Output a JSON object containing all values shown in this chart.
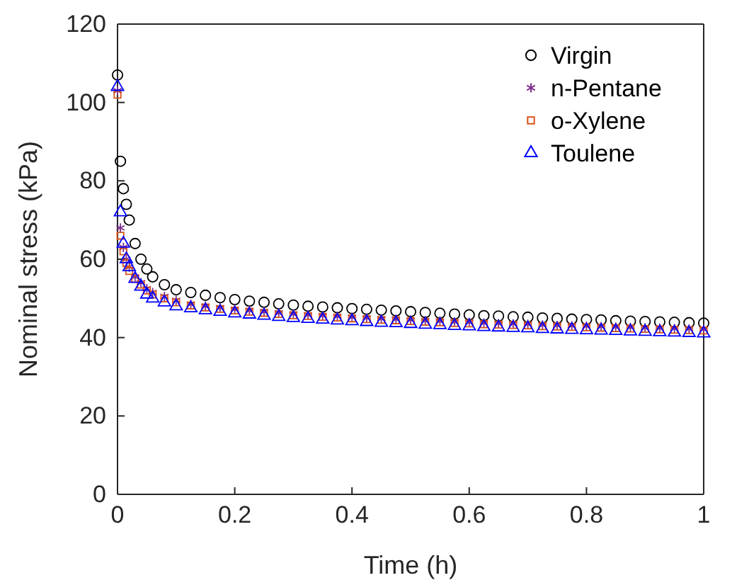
{
  "chart_data": {
    "type": "scatter",
    "xlabel": "Time (h)",
    "ylabel": "Nominal stress (kPa)",
    "xlim": [
      0,
      1
    ],
    "ylim": [
      0,
      120
    ],
    "xticks": [
      0,
      0.2,
      0.4,
      0.6,
      0.8,
      1
    ],
    "yticks": [
      0,
      20,
      40,
      60,
      80,
      100,
      120
    ],
    "legend": "top right",
    "grid": false,
    "x": [
      0,
      0.005,
      0.01,
      0.015,
      0.02,
      0.03,
      0.04,
      0.05,
      0.06,
      0.08,
      0.1,
      0.125,
      0.15,
      0.175,
      0.2,
      0.225,
      0.25,
      0.275,
      0.3,
      0.325,
      0.35,
      0.375,
      0.4,
      0.425,
      0.45,
      0.475,
      0.5,
      0.525,
      0.55,
      0.575,
      0.6,
      0.625,
      0.65,
      0.675,
      0.7,
      0.725,
      0.75,
      0.775,
      0.8,
      0.825,
      0.85,
      0.875,
      0.9,
      0.925,
      0.95,
      0.975,
      1
    ],
    "series": [
      {
        "name": "Virgin",
        "color": "#000000",
        "marker": "circle",
        "values": [
          107,
          85,
          78,
          74,
          70,
          64,
          60,
          57.5,
          55.5,
          53.5,
          52.2,
          51.5,
          50.8,
          50.2,
          49.7,
          49.3,
          49,
          48.6,
          48.3,
          48,
          47.8,
          47.6,
          47.4,
          47.2,
          47,
          46.8,
          46.6,
          46.4,
          46.2,
          46,
          45.8,
          45.6,
          45.5,
          45.3,
          45.2,
          45,
          44.9,
          44.7,
          44.6,
          44.5,
          44.3,
          44.2,
          44.1,
          44,
          43.9,
          43.8,
          43.7
        ]
      },
      {
        "name": "n-Pentane",
        "color": "#7e2f8e",
        "marker": "cross",
        "values": [
          103,
          68,
          63,
          60,
          58,
          55.5,
          54,
          52.5,
          51.5,
          50.5,
          49.5,
          48.5,
          48,
          47.6,
          47.2,
          46.9,
          46.6,
          46.3,
          46,
          45.8,
          45.6,
          45.4,
          45.2,
          45,
          44.8,
          44.7,
          44.5,
          44.3,
          44.2,
          44,
          43.9,
          43.7,
          43.6,
          43.5,
          43.4,
          43.2,
          43.1,
          43,
          42.9,
          42.8,
          42.7,
          42.6,
          42.5,
          42.4,
          42.3,
          42.2,
          42.1
        ]
      },
      {
        "name": "o-Xylene",
        "color": "#d95319",
        "marker": "square",
        "values": [
          102,
          66,
          62,
          59,
          57,
          55,
          53.5,
          52,
          51,
          50,
          49,
          48.2,
          47.7,
          47.3,
          46.9,
          46.6,
          46.3,
          46,
          45.7,
          45.5,
          45.3,
          45.1,
          44.9,
          44.7,
          44.5,
          44.4,
          44.2,
          44,
          43.9,
          43.7,
          43.6,
          43.4,
          43.3,
          43.2,
          43.1,
          42.9,
          42.8,
          42.7,
          42.6,
          42.5,
          42.4,
          42.3,
          42.2,
          42.1,
          42,
          41.9,
          41.8
        ]
      },
      {
        "name": "Toulene",
        "color": "#0000ff",
        "marker": "triangle",
        "values": [
          104,
          72,
          64,
          60,
          58,
          55,
          53,
          51,
          50,
          49,
          48,
          47.5,
          47,
          46.6,
          46.2,
          45.9,
          45.6,
          45.3,
          45,
          44.8,
          44.6,
          44.4,
          44.2,
          44,
          43.8,
          43.7,
          43.5,
          43.3,
          43.2,
          43,
          42.9,
          42.7,
          42.6,
          42.5,
          42.4,
          42.2,
          42.1,
          42,
          41.9,
          41.8,
          41.7,
          41.6,
          41.5,
          41.4,
          41.3,
          41.2,
          41.1
        ]
      }
    ]
  }
}
